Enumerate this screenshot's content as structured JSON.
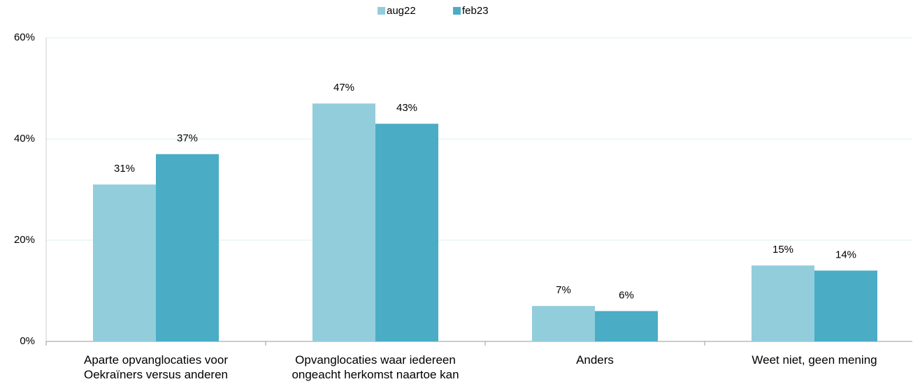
{
  "chart_data": {
    "type": "bar",
    "categories": [
      "Aparte opvanglocaties voor Oekraïners versus anderen",
      "Opvanglocaties waar iedereen ongeacht herkomst naartoe kan",
      "Anders",
      "Weet niet, geen mening"
    ],
    "series": [
      {
        "name": "aug22",
        "color": "#92cddc",
        "values": [
          31,
          47,
          7,
          15
        ],
        "value_labels": [
          "31%",
          "47%",
          "7%",
          "15%"
        ]
      },
      {
        "name": "feb23",
        "color": "#4bacc6",
        "values": [
          37,
          43,
          6,
          14
        ],
        "value_labels": [
          "37%",
          "43%",
          "6%",
          "14%"
        ]
      }
    ],
    "ylim": [
      0,
      60
    ],
    "yticks": [
      {
        "value": 0,
        "label": "0%"
      },
      {
        "value": 20,
        "label": "20%"
      },
      {
        "value": 40,
        "label": "40%"
      },
      {
        "value": 60,
        "label": "60%"
      }
    ],
    "grid": true,
    "legend": "top"
  }
}
